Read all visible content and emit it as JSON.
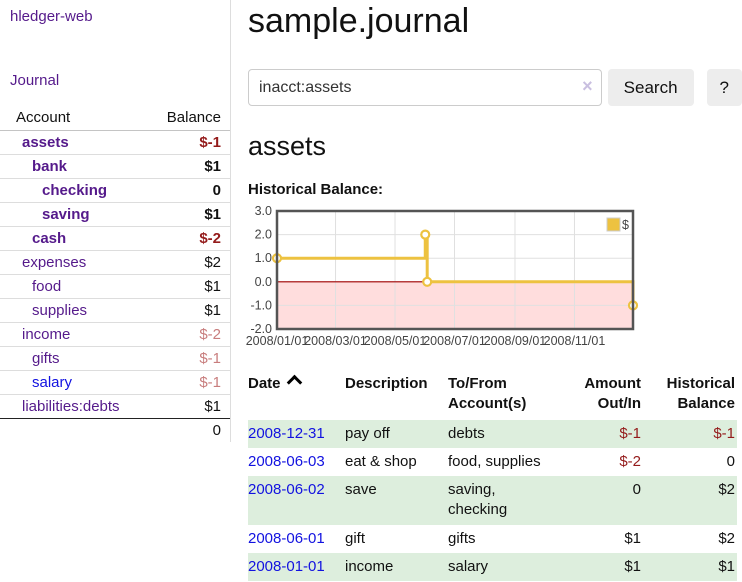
{
  "app": {
    "title": "hledger-web"
  },
  "nav": {
    "journal_label": "Journal"
  },
  "sidebar": {
    "table_headers": {
      "account": "Account",
      "balance": "Balance"
    },
    "accounts": [
      {
        "name": "assets",
        "balance": "$-1",
        "level": 0,
        "bold": true
      },
      {
        "name": "bank",
        "balance": "$1",
        "level": 1,
        "bold": true
      },
      {
        "name": "checking",
        "balance": "0",
        "level": 2,
        "bold": true
      },
      {
        "name": "saving",
        "balance": "$1",
        "level": 2,
        "bold": true
      },
      {
        "name": "cash",
        "balance": "$-2",
        "level": 1,
        "bold": true
      },
      {
        "name": "expenses",
        "balance": "$2",
        "level": 0,
        "bold": false
      },
      {
        "name": "food",
        "balance": "$1",
        "level": 1,
        "bold": false
      },
      {
        "name": "supplies",
        "balance": "$1",
        "level": 1,
        "bold": false
      },
      {
        "name": "income",
        "balance": "$-2",
        "level": 0,
        "bold": false
      },
      {
        "name": "gifts",
        "balance": "$-1",
        "level": 1,
        "bold": false
      },
      {
        "name": "salary",
        "balance": "$-1",
        "level": 1,
        "bold": false,
        "unvisited": true
      },
      {
        "name": "liabilities:debts",
        "balance": "$1",
        "level": 0,
        "bold": false
      }
    ],
    "total": "0"
  },
  "header": {
    "title": "sample.journal"
  },
  "search": {
    "value": "inacct:assets",
    "clear_icon": "×",
    "button_label": "Search",
    "help_label": "?"
  },
  "account_page": {
    "heading": "assets",
    "chart_label": "Historical Balance:"
  },
  "chart_data": {
    "type": "line",
    "mode": "steps",
    "title": "Historical Balance:",
    "series": [
      {
        "name": "$",
        "color": "#edc240",
        "points": [
          {
            "x": "2008-01-01",
            "y": 1
          },
          {
            "x": "2008-06-01",
            "y": 2
          },
          {
            "x": "2008-06-03",
            "y": 0
          },
          {
            "x": "2008-12-31",
            "y": -1
          }
        ]
      }
    ],
    "xlim": [
      "2008-01-01",
      "2008-12-31"
    ],
    "ylim": [
      -2,
      3
    ],
    "x_tick_labels": [
      "2008/01/01",
      "2008/03/01",
      "2008/05/01",
      "2008/07/01",
      "2008/09/01",
      "2008/11/01"
    ],
    "y_tick_labels": [
      "3.0",
      "2.0",
      "1.0",
      "0.0",
      "-1.0",
      "-2.0"
    ],
    "grid": true,
    "legend_position": "top-right",
    "legend": [
      {
        "label": "$",
        "color": "#edc240"
      }
    ],
    "negative_region_color": "#ffdddd",
    "zero_line_color": "#a40000",
    "border_color": "#545454",
    "grid_color": "#e0e0e0"
  },
  "register": {
    "headers": [
      "Date",
      "Description",
      "To/From Account(s)",
      "Amount Out/In",
      "Historical Balance"
    ],
    "sort_icon": "chevron-up",
    "rows": [
      {
        "date": "2008-12-31",
        "description": "pay off",
        "accounts": "debts",
        "amount": "$-1",
        "balance": "$-1"
      },
      {
        "date": "2008-06-03",
        "description": "eat & shop",
        "accounts": "food, supplies",
        "amount": "$-2",
        "balance": "0"
      },
      {
        "date": "2008-06-02",
        "description": "save",
        "accounts": "saving, checking",
        "amount": "0",
        "balance": "$2"
      },
      {
        "date": "2008-06-01",
        "description": "gift",
        "accounts": "gifts",
        "amount": "$1",
        "balance": "$2"
      },
      {
        "date": "2008-01-01",
        "description": "income",
        "accounts": "salary",
        "amount": "$1",
        "balance": "$1"
      }
    ]
  },
  "colors": {
    "link_purple": "#551a8b",
    "link_blue": "#1212e0",
    "negative_strong": "#941b1b",
    "negative_soft": "#c87d7d",
    "row_stripe_green": "#ddeedd",
    "chart_series_gold": "#edc240",
    "chart_negative_bg": "#ffdddd",
    "chart_zero_line": "#a40000",
    "button_bg": "#ededed"
  }
}
